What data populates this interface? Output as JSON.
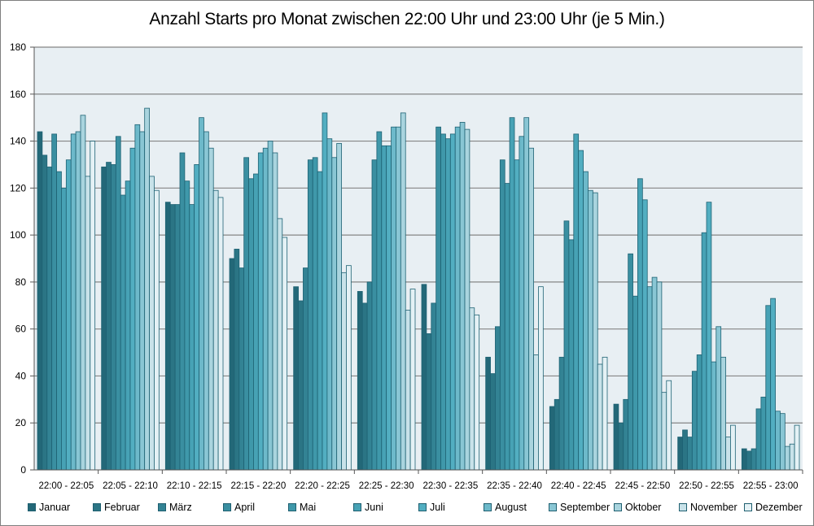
{
  "chart_data": {
    "type": "bar",
    "title": "Anzahl Starts pro Monat zwischen 22:00 Uhr und 23:00 Uhr (je 5 Min.)",
    "xlabel": "",
    "ylabel": "",
    "ylim": [
      0,
      180
    ],
    "yticks": [
      "0",
      "20",
      "40",
      "60",
      "80",
      "100",
      "120",
      "140",
      "160",
      "180"
    ],
    "grid": true,
    "legend_position": "bottom",
    "categories": [
      "22:00 - 22:05",
      "22:05 - 22:10",
      "22:10 - 22:15",
      "22:15 - 22:20",
      "22:20 - 22:25",
      "22:25 - 22:30",
      "22:30 - 22:35",
      "22:35 - 22:40",
      "22:40 - 22:45",
      "22:45 - 22:50",
      "22:50 - 22:55",
      "22:55 - 23:00"
    ],
    "series": [
      {
        "name": "Januar",
        "color": "#236878",
        "values": [
          144,
          129,
          114,
          90,
          78,
          76,
          79,
          48,
          27,
          28,
          14,
          9
        ]
      },
      {
        "name": "Februar",
        "color": "#2b7585",
        "values": [
          134,
          131,
          113,
          94,
          72,
          71,
          58,
          41,
          30,
          20,
          17,
          8
        ]
      },
      {
        "name": "März",
        "color": "#338394",
        "values": [
          129,
          130,
          113,
          86,
          86,
          80,
          71,
          61,
          48,
          30,
          14,
          9
        ]
      },
      {
        "name": "April",
        "color": "#3a8fa1",
        "values": [
          143,
          142,
          135,
          133,
          132,
          132,
          146,
          132,
          106,
          92,
          42,
          26
        ]
      },
      {
        "name": "Mai",
        "color": "#3f98aa",
        "values": [
          127,
          117,
          123,
          124,
          133,
          144,
          143,
          122,
          98,
          74,
          49,
          31
        ]
      },
      {
        "name": "Juni",
        "color": "#47a2b5",
        "values": [
          120,
          123,
          113,
          126,
          127,
          138,
          141,
          150,
          143,
          124,
          101,
          70
        ]
      },
      {
        "name": "Juli",
        "color": "#52aec1",
        "values": [
          132,
          137,
          130,
          135,
          152,
          138,
          143,
          132,
          136,
          115,
          114,
          73
        ]
      },
      {
        "name": "August",
        "color": "#6db9ca",
        "values": [
          143,
          147,
          150,
          137,
          141,
          146,
          146,
          142,
          127,
          78,
          46,
          25
        ]
      },
      {
        "name": "September",
        "color": "#89c6d4",
        "values": [
          144,
          144,
          144,
          140,
          133,
          146,
          148,
          150,
          119,
          82,
          61,
          24
        ]
      },
      {
        "name": "Oktober",
        "color": "#a9d4de",
        "values": [
          151,
          154,
          137,
          135,
          139,
          152,
          145,
          137,
          118,
          80,
          48,
          10
        ]
      },
      {
        "name": "November",
        "color": "#c8e2e9",
        "values": [
          125,
          125,
          119,
          107,
          84,
          68,
          69,
          49,
          45,
          33,
          14,
          11
        ]
      },
      {
        "name": "Dezember",
        "color": "#e4f1f5",
        "values": [
          140,
          119,
          116,
          99,
          87,
          77,
          66,
          78,
          48,
          38,
          19,
          19
        ]
      }
    ]
  }
}
